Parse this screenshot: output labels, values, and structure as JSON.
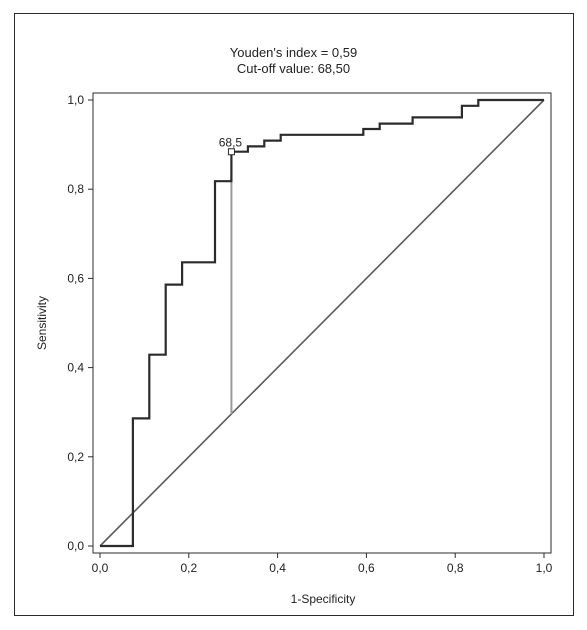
{
  "chart_data": {
    "type": "line",
    "title": "Youden's index  = 0,59",
    "subtitle": "Cut-off value: 68,50",
    "xlabel": "1-Specificity",
    "ylabel": "Sensitivity",
    "xlim": [
      0,
      1
    ],
    "ylim": [
      0,
      1
    ],
    "x_ticks": [
      "0,0",
      "0,2",
      "0,4",
      "0,6",
      "0,8",
      "1,0"
    ],
    "y_ticks": [
      "0,0",
      "0,2",
      "0,4",
      "0,6",
      "0,8",
      "1,0"
    ],
    "grid": false,
    "roc_curve": {
      "x": [
        0.0,
        0.074,
        0.074,
        0.111,
        0.111,
        0.148,
        0.148,
        0.185,
        0.185,
        0.259,
        0.259,
        0.296,
        0.296,
        0.333,
        0.333,
        0.37,
        0.37,
        0.407,
        0.407,
        0.593,
        0.593,
        0.63,
        0.63,
        0.704,
        0.704,
        0.815,
        0.815,
        0.852,
        0.852,
        1.0
      ],
      "y": [
        0.0,
        0.0,
        0.286,
        0.286,
        0.429,
        0.429,
        0.586,
        0.586,
        0.636,
        0.636,
        0.818,
        0.818,
        0.884,
        0.884,
        0.896,
        0.896,
        0.909,
        0.909,
        0.922,
        0.922,
        0.935,
        0.935,
        0.947,
        0.947,
        0.961,
        0.961,
        0.987,
        0.987,
        1.0,
        1.0
      ]
    },
    "reference_line": {
      "x": [
        0,
        1
      ],
      "y": [
        0,
        1
      ]
    },
    "youden_line": {
      "x": 0.296,
      "y_from": 0.296,
      "y_to": 0.884
    },
    "cutoff_point": {
      "x": 0.296,
      "y": 0.884,
      "label": "68,5"
    },
    "colors": {
      "curve": "#2b2b2b",
      "reference": "#5a5a5a",
      "youden": "#9a9a9a"
    }
  }
}
